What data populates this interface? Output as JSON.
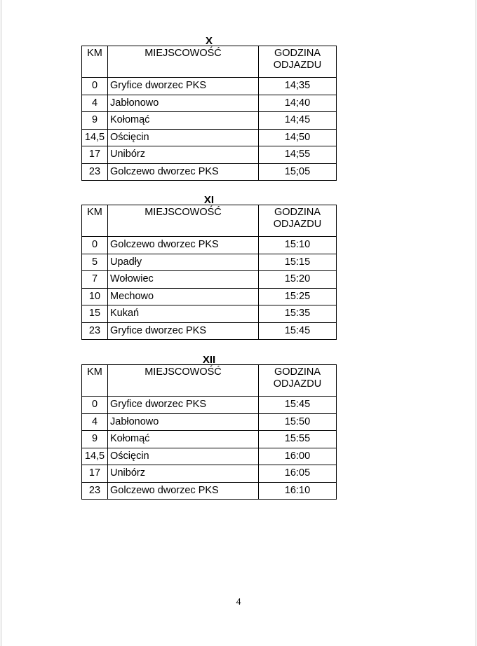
{
  "headers": {
    "km": "KM",
    "place": "MIEJSCOWOŚĆ",
    "time_line1": "GODZINA",
    "time_line2": "ODJAZDU"
  },
  "sections": [
    {
      "title": "X",
      "rows": [
        {
          "km": "0",
          "place": "Gryfice dworzec PKS",
          "time": "14;35"
        },
        {
          "km": "4",
          "place": "Jabłonowo",
          "time": "14;40"
        },
        {
          "km": "9",
          "place": "Kołomąć",
          "time": "14;45"
        },
        {
          "km": "14,5",
          "place": "Ościęcin",
          "time": "14;50"
        },
        {
          "km": "17",
          "place": "Unibórz",
          "time": "14;55"
        },
        {
          "km": "23",
          "place": "Golczewo dworzec PKS",
          "time": "15;05"
        }
      ]
    },
    {
      "title": "XI",
      "rows": [
        {
          "km": "0",
          "place": "Golczewo dworzec PKS",
          "time": "15:10"
        },
        {
          "km": "5",
          "place": "Upadły",
          "time": "15:15"
        },
        {
          "km": "7",
          "place": "Wołowiec",
          "time": "15:20"
        },
        {
          "km": "10",
          "place": "Mechowo",
          "time": "15:25"
        },
        {
          "km": "15",
          "place": "Kukań",
          "time": "15:35"
        },
        {
          "km": "23",
          "place": "Gryfice dworzec PKS",
          "time": "15:45"
        }
      ]
    },
    {
      "title": "XII",
      "rows": [
        {
          "km": "0",
          "place": "Gryfice dworzec PKS",
          "time": "15:45"
        },
        {
          "km": "4",
          "place": "Jabłonowo",
          "time": "15:50"
        },
        {
          "km": "9",
          "place": "Kołomąć",
          "time": "15:55"
        },
        {
          "km": "14,5",
          "place": "Ościęcin",
          "time": "16:00"
        },
        {
          "km": "17",
          "place": "Unibórz",
          "time": "16:05"
        },
        {
          "km": "23",
          "place": "Golczewo dworzec PKS",
          "time": "16:10"
        }
      ]
    }
  ],
  "page_number": "4"
}
